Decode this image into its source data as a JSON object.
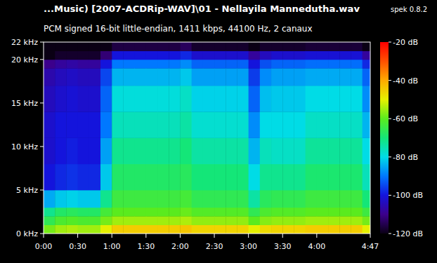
{
  "chart_data": {
    "type": "spectrogram",
    "title": "...Music) [2007-ACDRip-WAV]\\01 - Nellayila Mannedutha.wav",
    "annotation": "spek 0.8.2",
    "subtitle": "PCM signed 16-bit little-endian, 1411 kbps, 44100 Hz, 2 canaux",
    "xlim": [
      0,
      287
    ],
    "ylim": [
      0,
      22
    ],
    "xticks": [
      {
        "value": 0,
        "label": "0:00"
      },
      {
        "value": 30,
        "label": "0:30"
      },
      {
        "value": 60,
        "label": "1:00"
      },
      {
        "value": 90,
        "label": "1:30"
      },
      {
        "value": 120,
        "label": "2:00"
      },
      {
        "value": 150,
        "label": "2:30"
      },
      {
        "value": 180,
        "label": "3:00"
      },
      {
        "value": 210,
        "label": "3:30"
      },
      {
        "value": 240,
        "label": "4:00"
      },
      {
        "value": 287,
        "label": "4:47"
      }
    ],
    "yticks": [
      {
        "value": 0,
        "label": "0 kHz"
      },
      {
        "value": 5,
        "label": "5 kHz"
      },
      {
        "value": 10,
        "label": "10 kHz"
      },
      {
        "value": 15,
        "label": "15 kHz"
      },
      {
        "value": 20,
        "label": "20 kHz"
      },
      {
        "value": 22,
        "label": "22 kHz"
      }
    ],
    "x_bins": [
      0,
      10,
      20,
      30,
      40,
      50,
      60,
      70,
      80,
      90,
      100,
      110,
      120,
      130,
      140,
      150,
      160,
      170,
      180,
      190,
      200,
      210,
      220,
      230,
      240,
      250,
      260,
      270,
      280,
      287
    ],
    "y_bins": [
      0,
      1,
      2,
      3,
      5,
      8,
      11,
      14,
      17,
      19,
      20,
      21,
      22
    ],
    "cells": [
      [
        -58,
        -66,
        -72,
        -85,
        -100,
        -102,
        -102,
        -104,
        -106,
        -110,
        -120,
        -120
      ],
      [
        -55,
        -62,
        -68,
        -82,
        -98,
        -100,
        -100,
        -102,
        -104,
        -108,
        -118,
        -120
      ],
      [
        -54,
        -61,
        -67,
        -81,
        -97,
        -99,
        -100,
        -101,
        -103,
        -107,
        -118,
        -120
      ],
      [
        -55,
        -62,
        -68,
        -82,
        -98,
        -100,
        -100,
        -102,
        -104,
        -108,
        -118,
        -120
      ],
      [
        -55,
        -62,
        -68,
        -82,
        -98,
        -100,
        -100,
        -102,
        -104,
        -108,
        -118,
        -120
      ],
      [
        -50,
        -58,
        -63,
        -72,
        -82,
        -86,
        -90,
        -92,
        -95,
        -100,
        -112,
        -120
      ],
      [
        -45,
        -55,
        -60,
        -64,
        -68,
        -72,
        -76,
        -79,
        -84,
        -90,
        -100,
        -116
      ],
      [
        -45,
        -55,
        -60,
        -64,
        -68,
        -72,
        -76,
        -79,
        -84,
        -90,
        -100,
        -116
      ],
      [
        -45,
        -55,
        -60,
        -64,
        -68,
        -72,
        -76,
        -79,
        -84,
        -90,
        -100,
        -116
      ],
      [
        -45,
        -55,
        -60,
        -64,
        -68,
        -72,
        -76,
        -79,
        -84,
        -90,
        -100,
        -116
      ],
      [
        -45,
        -55,
        -60,
        -64,
        -68,
        -72,
        -76,
        -79,
        -84,
        -90,
        -100,
        -116
      ],
      [
        -45,
        -55,
        -60,
        -64,
        -68,
        -72,
        -76,
        -79,
        -84,
        -90,
        -100,
        -116
      ],
      [
        -44,
        -54,
        -59,
        -63,
        -67,
        -70,
        -74,
        -77,
        -82,
        -88,
        -98,
        -114
      ],
      [
        -46,
        -56,
        -61,
        -66,
        -70,
        -74,
        -78,
        -81,
        -86,
        -92,
        -102,
        -118
      ],
      [
        -46,
        -56,
        -61,
        -66,
        -70,
        -74,
        -78,
        -81,
        -86,
        -92,
        -102,
        -118
      ],
      [
        -46,
        -56,
        -61,
        -66,
        -70,
        -74,
        -78,
        -81,
        -86,
        -92,
        -102,
        -118
      ],
      [
        -46,
        -56,
        -61,
        -66,
        -70,
        -74,
        -78,
        -81,
        -86,
        -92,
        -102,
        -118
      ],
      [
        -46,
        -56,
        -61,
        -66,
        -70,
        -74,
        -78,
        -81,
        -86,
        -92,
        -102,
        -118
      ],
      [
        -50,
        -60,
        -66,
        -74,
        -80,
        -84,
        -88,
        -92,
        -96,
        -100,
        -108,
        -120
      ],
      [
        -47,
        -57,
        -62,
        -67,
        -72,
        -76,
        -80,
        -83,
        -88,
        -94,
        -104,
        -118
      ],
      [
        -46,
        -56,
        -61,
        -66,
        -72,
        -77,
        -80,
        -82,
        -86,
        -92,
        -102,
        -118
      ],
      [
        -46,
        -56,
        -61,
        -66,
        -72,
        -77,
        -80,
        -82,
        -86,
        -92,
        -102,
        -118
      ],
      [
        -46,
        -56,
        -61,
        -66,
        -72,
        -77,
        -80,
        -82,
        -86,
        -92,
        -102,
        -118
      ],
      [
        -45,
        -55,
        -60,
        -64,
        -69,
        -73,
        -77,
        -80,
        -85,
        -91,
        -101,
        -117
      ],
      [
        -45,
        -55,
        -60,
        -64,
        -69,
        -73,
        -77,
        -80,
        -85,
        -91,
        -101,
        -117
      ],
      [
        -45,
        -55,
        -60,
        -64,
        -69,
        -73,
        -77,
        -80,
        -85,
        -91,
        -101,
        -117
      ],
      [
        -45,
        -55,
        -60,
        -64,
        -69,
        -73,
        -77,
        -80,
        -85,
        -91,
        -101,
        -117
      ],
      [
        -45,
        -55,
        -60,
        -64,
        -69,
        -73,
        -77,
        -80,
        -85,
        -91,
        -101,
        -117
      ],
      [
        -50,
        -58,
        -64,
        -70,
        -76,
        -80,
        -84,
        -88,
        -92,
        -98,
        -108,
        -120
      ]
    ],
    "colorbar": {
      "range": [
        -120,
        -20
      ],
      "ticks": [
        {
          "value": -20,
          "label": "-20 dB"
        },
        {
          "value": -40,
          "label": "-40 dB"
        },
        {
          "value": -60,
          "label": "-60 dB"
        },
        {
          "value": -80,
          "label": "-80 dB"
        },
        {
          "value": -100,
          "label": "-100 dB"
        },
        {
          "value": -120,
          "label": "-120 dB"
        }
      ]
    }
  }
}
